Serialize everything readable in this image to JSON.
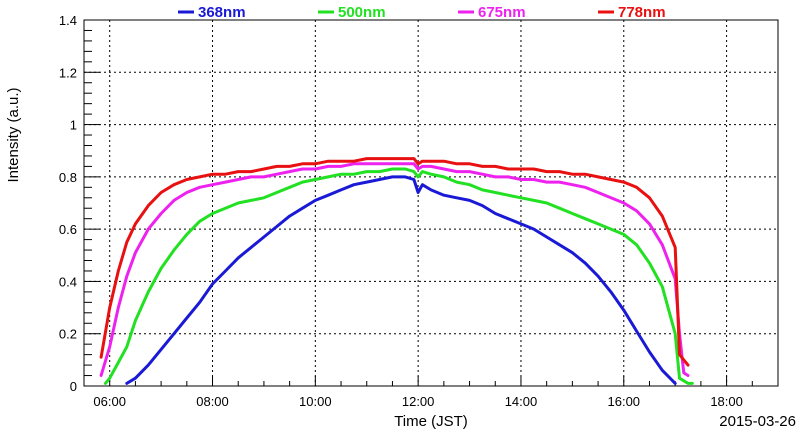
{
  "chart_data": {
    "type": "line",
    "xlabel": "Time (JST)",
    "ylabel": "Intensity (a.u.)",
    "date_label": "2015-03-26",
    "xlim": [
      "05:30",
      "19:00"
    ],
    "ylim": [
      0,
      1.4
    ],
    "x_ticks": [
      "06:00",
      "08:00",
      "10:00",
      "12:00",
      "14:00",
      "16:00",
      "18:00"
    ],
    "y_ticks": [
      "0",
      "0.2",
      "0.4",
      "0.6",
      "0.8",
      "1",
      "1.2",
      "1.4"
    ],
    "grid": true,
    "legend_position": "top",
    "series": [
      {
        "name": "368nm",
        "color": "#1a1ad6",
        "x": [
          "06:20",
          "06:30",
          "06:45",
          "07:00",
          "07:15",
          "07:30",
          "07:45",
          "08:00",
          "08:15",
          "08:30",
          "08:45",
          "09:00",
          "09:15",
          "09:30",
          "09:45",
          "10:00",
          "10:15",
          "10:30",
          "10:45",
          "11:00",
          "11:15",
          "11:30",
          "11:45",
          "11:55",
          "12:00",
          "12:05",
          "12:15",
          "12:30",
          "12:45",
          "13:00",
          "13:15",
          "13:30",
          "13:45",
          "14:00",
          "14:15",
          "14:30",
          "14:45",
          "15:00",
          "15:15",
          "15:30",
          "15:45",
          "16:00",
          "16:15",
          "16:30",
          "16:45",
          "17:00"
        ],
        "y": [
          0.01,
          0.03,
          0.08,
          0.14,
          0.2,
          0.26,
          0.32,
          0.39,
          0.44,
          0.49,
          0.53,
          0.57,
          0.61,
          0.65,
          0.68,
          0.71,
          0.73,
          0.75,
          0.77,
          0.78,
          0.79,
          0.8,
          0.8,
          0.79,
          0.74,
          0.77,
          0.75,
          0.73,
          0.72,
          0.71,
          0.69,
          0.66,
          0.64,
          0.62,
          0.6,
          0.57,
          0.54,
          0.51,
          0.47,
          0.42,
          0.36,
          0.29,
          0.21,
          0.13,
          0.06,
          0.01
        ]
      },
      {
        "name": "500nm",
        "color": "#22e022",
        "x": [
          "05:55",
          "06:00",
          "06:10",
          "06:20",
          "06:30",
          "06:45",
          "07:00",
          "07:15",
          "07:30",
          "07:45",
          "08:00",
          "08:15",
          "08:30",
          "08:45",
          "09:00",
          "09:15",
          "09:30",
          "09:45",
          "10:00",
          "10:15",
          "10:30",
          "10:45",
          "11:00",
          "11:15",
          "11:30",
          "11:45",
          "11:55",
          "12:00",
          "12:05",
          "12:15",
          "12:30",
          "12:45",
          "13:00",
          "13:15",
          "13:30",
          "13:45",
          "14:00",
          "14:15",
          "14:30",
          "14:45",
          "15:00",
          "15:15",
          "15:30",
          "15:45",
          "16:00",
          "16:15",
          "16:30",
          "16:45",
          "17:00",
          "17:05",
          "17:10",
          "17:15",
          "17:20"
        ],
        "y": [
          0.01,
          0.03,
          0.09,
          0.15,
          0.25,
          0.36,
          0.45,
          0.52,
          0.58,
          0.63,
          0.66,
          0.68,
          0.7,
          0.71,
          0.72,
          0.74,
          0.76,
          0.78,
          0.79,
          0.8,
          0.81,
          0.81,
          0.82,
          0.82,
          0.83,
          0.83,
          0.82,
          0.8,
          0.82,
          0.81,
          0.8,
          0.78,
          0.77,
          0.75,
          0.74,
          0.73,
          0.72,
          0.71,
          0.7,
          0.68,
          0.66,
          0.64,
          0.62,
          0.6,
          0.58,
          0.54,
          0.47,
          0.38,
          0.2,
          0.03,
          0.02,
          0.01,
          0.01
        ]
      },
      {
        "name": "675nm",
        "color": "#ee22ee",
        "x": [
          "05:50",
          "06:00",
          "06:10",
          "06:20",
          "06:30",
          "06:45",
          "07:00",
          "07:15",
          "07:30",
          "07:45",
          "08:00",
          "08:15",
          "08:30",
          "08:45",
          "09:00",
          "09:15",
          "09:30",
          "09:45",
          "10:00",
          "10:15",
          "10:30",
          "10:45",
          "11:00",
          "11:15",
          "11:30",
          "11:45",
          "11:55",
          "12:00",
          "12:05",
          "12:15",
          "12:30",
          "12:45",
          "13:00",
          "13:15",
          "13:30",
          "13:45",
          "14:00",
          "14:15",
          "14:30",
          "14:45",
          "15:00",
          "15:15",
          "15:30",
          "15:45",
          "16:00",
          "16:15",
          "16:30",
          "16:45",
          "17:00",
          "17:05",
          "17:10",
          "17:15"
        ],
        "y": [
          0.04,
          0.15,
          0.3,
          0.42,
          0.51,
          0.6,
          0.66,
          0.71,
          0.74,
          0.76,
          0.77,
          0.78,
          0.79,
          0.8,
          0.8,
          0.81,
          0.82,
          0.83,
          0.83,
          0.84,
          0.84,
          0.85,
          0.85,
          0.85,
          0.85,
          0.85,
          0.85,
          0.83,
          0.84,
          0.84,
          0.83,
          0.82,
          0.82,
          0.81,
          0.8,
          0.8,
          0.79,
          0.79,
          0.78,
          0.78,
          0.77,
          0.76,
          0.74,
          0.72,
          0.7,
          0.67,
          0.62,
          0.54,
          0.41,
          0.2,
          0.05,
          0.04
        ]
      },
      {
        "name": "778nm",
        "color": "#e81010",
        "x": [
          "05:50",
          "06:00",
          "06:10",
          "06:20",
          "06:30",
          "06:45",
          "07:00",
          "07:15",
          "07:30",
          "07:45",
          "08:00",
          "08:15",
          "08:30",
          "08:45",
          "09:00",
          "09:15",
          "09:30",
          "09:45",
          "10:00",
          "10:15",
          "10:30",
          "10:45",
          "11:00",
          "11:15",
          "11:30",
          "11:45",
          "11:55",
          "12:00",
          "12:05",
          "12:15",
          "12:30",
          "12:45",
          "13:00",
          "13:15",
          "13:30",
          "13:45",
          "14:00",
          "14:15",
          "14:30",
          "14:45",
          "15:00",
          "15:15",
          "15:30",
          "15:45",
          "16:00",
          "16:15",
          "16:30",
          "16:45",
          "17:00",
          "17:05",
          "17:10",
          "17:15"
        ],
        "y": [
          0.11,
          0.3,
          0.44,
          0.55,
          0.62,
          0.69,
          0.74,
          0.77,
          0.79,
          0.8,
          0.81,
          0.81,
          0.82,
          0.82,
          0.83,
          0.84,
          0.84,
          0.85,
          0.85,
          0.86,
          0.86,
          0.86,
          0.87,
          0.87,
          0.87,
          0.87,
          0.87,
          0.85,
          0.86,
          0.86,
          0.86,
          0.85,
          0.85,
          0.84,
          0.84,
          0.83,
          0.83,
          0.83,
          0.82,
          0.82,
          0.81,
          0.81,
          0.8,
          0.79,
          0.78,
          0.76,
          0.72,
          0.65,
          0.53,
          0.12,
          0.1,
          0.08
        ]
      }
    ]
  }
}
